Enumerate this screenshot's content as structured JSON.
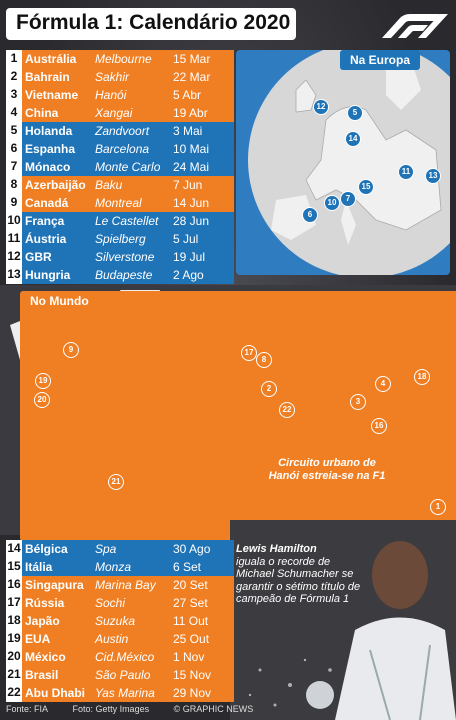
{
  "title": "Fórmula 1: Calendário 2020",
  "europe_label": "Na Europa",
  "world_label": "No Mundo",
  "races_top": [
    {
      "n": "1",
      "country": "Austrália",
      "city": "Melbourne",
      "date": "15 Mar",
      "color": "orange"
    },
    {
      "n": "2",
      "country": "Bahrain",
      "city": "Sakhir",
      "date": "22 Mar",
      "color": "orange"
    },
    {
      "n": "3",
      "country": "Vietname",
      "city": "Hanói",
      "date": "5 Abr",
      "color": "orange"
    },
    {
      "n": "4",
      "country": "China",
      "city": "Xangai",
      "date": "19 Abr",
      "color": "orange"
    },
    {
      "n": "5",
      "country": "Holanda",
      "city": "Zandvoort",
      "date": "3 Mai",
      "color": "blue"
    },
    {
      "n": "6",
      "country": "Espanha",
      "city": "Barcelona",
      "date": "10 Mai",
      "color": "blue"
    },
    {
      "n": "7",
      "country": "Mónaco",
      "city": "Monte Carlo",
      "date": "24 Mai",
      "color": "blue"
    },
    {
      "n": "8",
      "country": "Azerbaijão",
      "city": "Baku",
      "date": "7 Jun",
      "color": "orange"
    },
    {
      "n": "9",
      "country": "Canadá",
      "city": "Montreal",
      "date": "14 Jun",
      "color": "orange"
    },
    {
      "n": "10",
      "country": "França",
      "city": "Le Castellet",
      "date": "28 Jun",
      "color": "blue"
    },
    {
      "n": "11",
      "country": "Áustria",
      "city": "Spielberg",
      "date": "5 Jul",
      "color": "blue"
    },
    {
      "n": "12",
      "country": "GBR",
      "city": "Silverstone",
      "date": "19 Jul",
      "color": "blue"
    },
    {
      "n": "13",
      "country": "Hungria",
      "city": "Budapeste",
      "date": "2 Ago",
      "color": "blue"
    }
  ],
  "races_bottom": [
    {
      "n": "14",
      "country": "Bélgica",
      "city": "Spa",
      "date": "30 Ago",
      "color": "blue"
    },
    {
      "n": "15",
      "country": "Itália",
      "city": "Monza",
      "date": "6 Set",
      "color": "blue"
    },
    {
      "n": "16",
      "country": "Singapura",
      "city": "Marina Bay",
      "date": "20 Set",
      "color": "orange"
    },
    {
      "n": "17",
      "country": "Rússia",
      "city": "Sochi",
      "date": "27 Set",
      "color": "orange"
    },
    {
      "n": "18",
      "country": "Japão",
      "city": "Suzuka",
      "date": "11 Out",
      "color": "orange"
    },
    {
      "n": "19",
      "country": "EUA",
      "city": "Austin",
      "date": "25 Out",
      "color": "orange"
    },
    {
      "n": "20",
      "country": "México",
      "city": "Cid.México",
      "date": "1 Nov",
      "color": "orange"
    },
    {
      "n": "21",
      "country": "Brasil",
      "city": "São Paulo",
      "date": "15 Nov",
      "color": "orange"
    },
    {
      "n": "22",
      "country": "Abu Dhabi",
      "city": "Yas Marina",
      "date": "29 Nov",
      "color": "orange"
    }
  ],
  "hanoi_note": "Circuito urbano de Hanói estreia-se na F1",
  "hamilton_name": "Lewis Hamilton",
  "hamilton_text": "iguala o recorde de Michael Schumacher se garantir o sétimo título de campeão de Fórmula 1",
  "footer": {
    "source": "Fonte: FIA",
    "photo": "Foto: Getty Images",
    "credit": "© GRAPHIC NEWS"
  },
  "colors": {
    "orange": "#f07f24",
    "blue": "#1f73b7"
  },
  "europe_pins": [
    {
      "n": "12",
      "c": "b"
    },
    {
      "n": "5",
      "c": "b"
    },
    {
      "n": "14",
      "c": "b"
    },
    {
      "n": "11",
      "c": "b"
    },
    {
      "n": "13",
      "c": "b"
    },
    {
      "n": "15",
      "c": "b"
    },
    {
      "n": "10",
      "c": "b"
    },
    {
      "n": "7",
      "c": "b"
    },
    {
      "n": "6",
      "c": "b"
    }
  ],
  "world_pins": [
    {
      "n": "9",
      "c": "o"
    },
    {
      "n": "17",
      "c": "o"
    },
    {
      "n": "8",
      "c": "o"
    },
    {
      "n": "19",
      "c": "o"
    },
    {
      "n": "20",
      "c": "o"
    },
    {
      "n": "2",
      "c": "o"
    },
    {
      "n": "22",
      "c": "o"
    },
    {
      "n": "4",
      "c": "o"
    },
    {
      "n": "18",
      "c": "o"
    },
    {
      "n": "3",
      "c": "o"
    },
    {
      "n": "16",
      "c": "o"
    },
    {
      "n": "21",
      "c": "o"
    },
    {
      "n": "1",
      "c": "o"
    }
  ]
}
